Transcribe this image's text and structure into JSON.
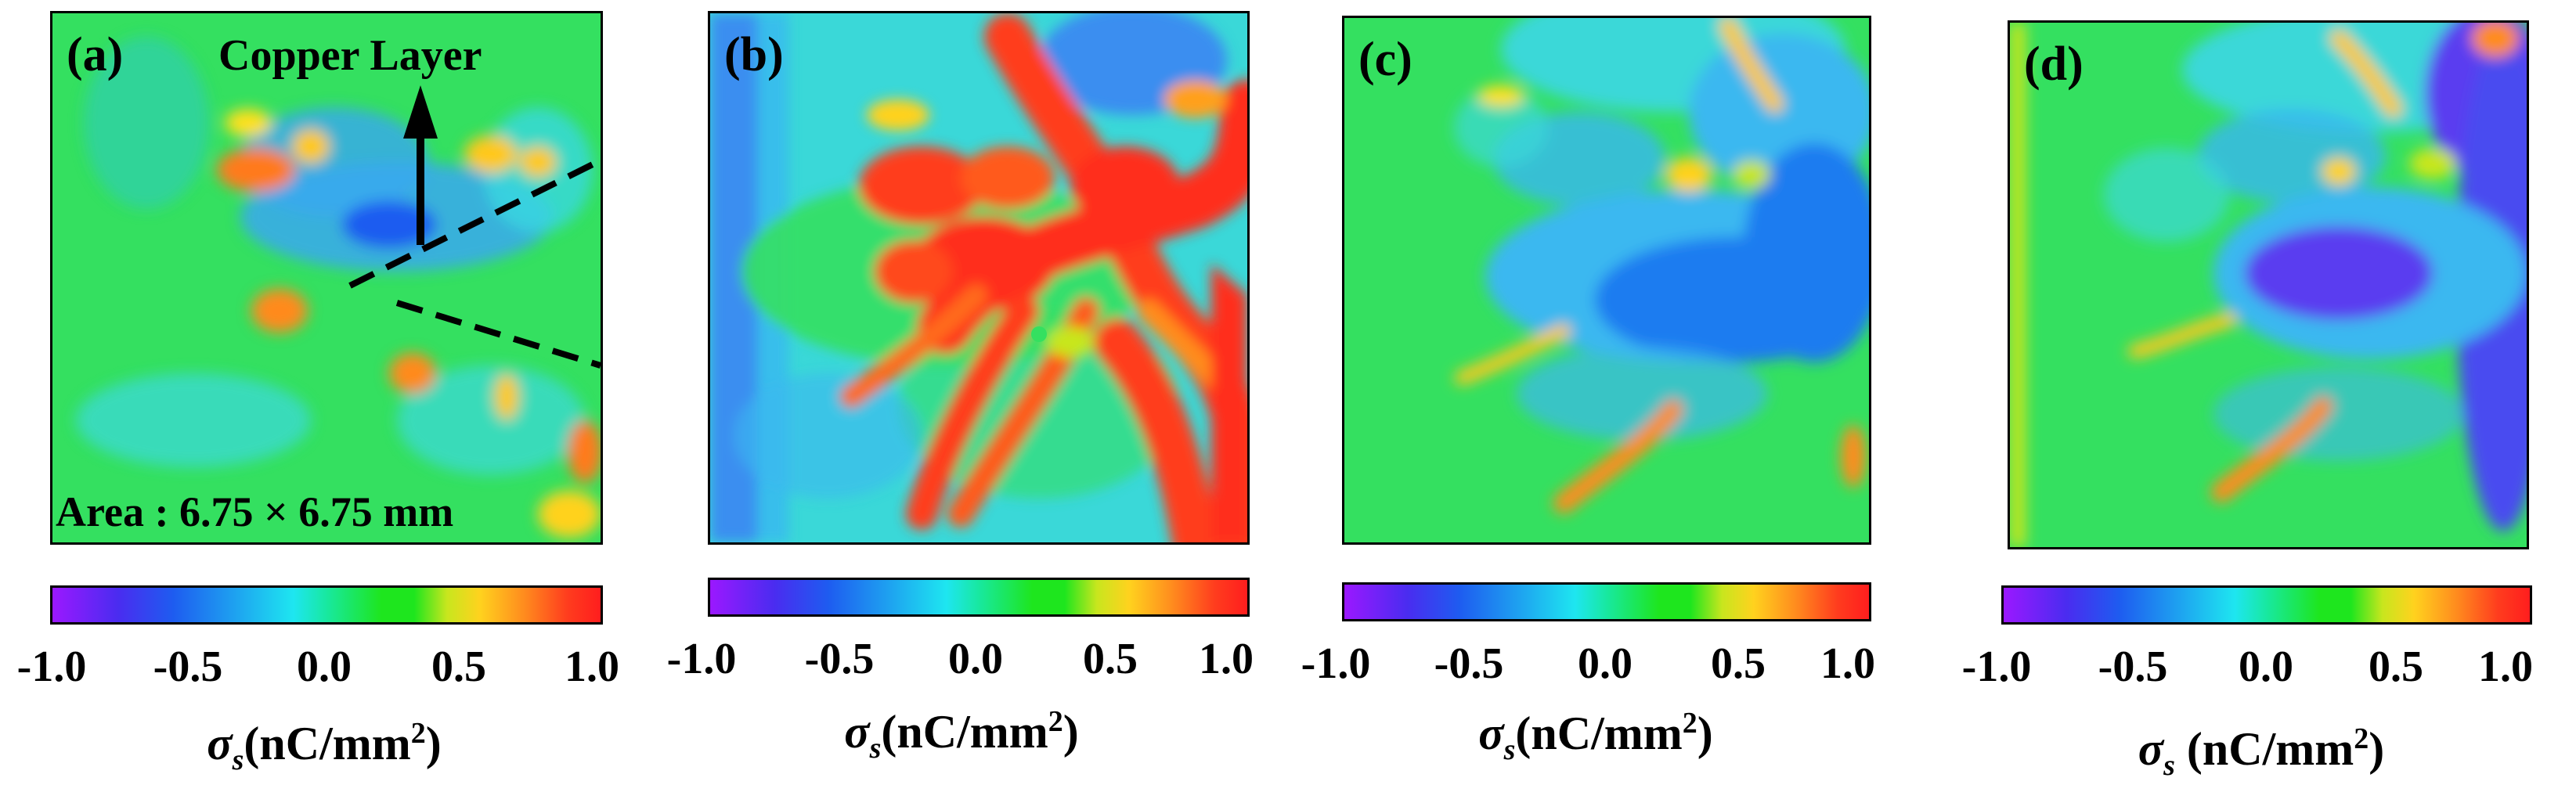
{
  "panels": [
    {
      "label": "(a)"
    },
    {
      "label": "(b)"
    },
    {
      "label": "(c)"
    },
    {
      "label": "(d)"
    }
  ],
  "annotations": {
    "copper_layer": "Copper Layer",
    "area": "Area : 6.75 × 6.75 mm"
  },
  "colorbar": {
    "ticks": [
      "-1.0",
      "-0.5",
      "0.0",
      "0.5",
      "1.0"
    ],
    "range": [
      -1.0,
      1.0
    ],
    "colormap": [
      "#9b18ff",
      "#1e5cf0",
      "#1ee6f0",
      "#1ee61e",
      "#ffd21e",
      "#ff1e1e"
    ]
  },
  "unit_label": {
    "symbol": "σ",
    "subscript": "s",
    "unit": "(nC/mm",
    "power": "2",
    "close": ")"
  }
}
